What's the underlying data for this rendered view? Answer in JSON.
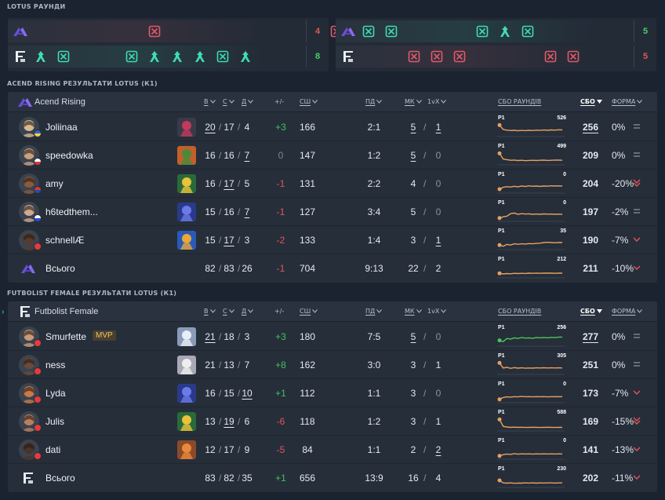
{
  "rounds_section_title": "LOTUS РАУНДИ",
  "rounds": {
    "colors": {
      "win": "#3fdcb0",
      "loss": "#e05a68",
      "score_win": "#45d06b",
      "score_loss": "#e05a5a"
    },
    "left_panel": {
      "rows": [
        {
          "team": "Acend Rising",
          "logo": "acend-logo",
          "score": "4",
          "score_kind": "loss",
          "icons": [
            {
              "slot": 6,
              "type": "elim",
              "kind": "loss"
            },
            {
              "slot": 14,
              "type": "elim",
              "kind": "loss"
            },
            {
              "slot": 15,
              "type": "elim",
              "kind": "loss"
            },
            {
              "slot": 16,
              "type": "elim",
              "kind": "loss"
            }
          ]
        },
        {
          "team": "Futbolist Female",
          "logo": "futbolist-logo",
          "score": "8",
          "score_kind": "win",
          "icons": [
            {
              "slot": 1,
              "type": "defuse",
              "kind": "win"
            },
            {
              "slot": 2,
              "type": "elim",
              "kind": "win"
            },
            {
              "slot": 5,
              "type": "elim",
              "kind": "win"
            },
            {
              "slot": 6,
              "type": "defuse",
              "kind": "win"
            },
            {
              "slot": 7,
              "type": "defuse",
              "kind": "win"
            },
            {
              "slot": 8,
              "type": "defuse",
              "kind": "win"
            },
            {
              "slot": 9,
              "type": "elim",
              "kind": "win"
            },
            {
              "slot": 10,
              "type": "defuse",
              "kind": "win"
            }
          ]
        }
      ]
    },
    "right_panel": {
      "rows": [
        {
          "team": "Acend Rising",
          "logo": "acend-logo",
          "score": "5",
          "score_kind": "win",
          "icons": [
            {
              "slot": 1,
              "type": "elim",
              "kind": "win"
            },
            {
              "slot": 2,
              "type": "elim",
              "kind": "win"
            },
            {
              "slot": 6,
              "type": "elim",
              "kind": "win"
            },
            {
              "slot": 7,
              "type": "defuse",
              "kind": "win"
            },
            {
              "slot": 8,
              "type": "elim",
              "kind": "win"
            }
          ]
        },
        {
          "team": "Futbolist Female",
          "logo": "futbolist-logo",
          "score": "5",
          "score_kind": "loss",
          "icons": [
            {
              "slot": 3,
              "type": "elim",
              "kind": "loss"
            },
            {
              "slot": 4,
              "type": "elim",
              "kind": "loss"
            },
            {
              "slot": 5,
              "type": "elim",
              "kind": "loss"
            },
            {
              "slot": 9,
              "type": "elim",
              "kind": "loss"
            },
            {
              "slot": 10,
              "type": "elim",
              "kind": "loss"
            }
          ]
        }
      ]
    }
  },
  "headers": {
    "k": "В",
    "d": "С",
    "a": "Д",
    "pm": "+/-",
    "acs": "СШ",
    "fkfd": "ПД",
    "mk": "МК",
    "clutch": "1vX",
    "graph": "СБО РАУНДІВ",
    "sbo": "СБО",
    "form": "ФОРМА"
  },
  "teams": [
    {
      "section_title": "ACEND RISING РЕЗУЛЬТАТИ LOTUS (К1)",
      "name": "Acend Rising",
      "logo": "acend-logo",
      "players": [
        {
          "name": "Joliinaa",
          "flag": "flag-se",
          "agent": "agent-dark",
          "k": "20",
          "d": "17",
          "a": "4",
          "k_u": true,
          "d_u": false,
          "a_u": false,
          "pm": "+3",
          "acs": "166",
          "fkfd": "2:1",
          "mk": "5",
          "mk_u": true,
          "cl": "1",
          "cl_u": true,
          "graph_label": "P1",
          "graph_max": "526",
          "sbo": "256",
          "sbo_u": true,
          "form": "0%",
          "form_icon": "equal-icon",
          "spark": [
            0.85,
            0.5,
            0.45,
            0.42,
            0.44,
            0.4,
            0.43,
            0.41,
            0.44,
            0.42,
            0.45,
            0.43,
            0.46,
            0.44,
            0.47,
            0.45,
            0.48,
            0.47
          ],
          "spark_color": "#e8a060"
        },
        {
          "name": "speedowka",
          "flag": "flag-pl",
          "agent": "agent-orange",
          "k": "16",
          "d": "16",
          "a": "7",
          "k_u": false,
          "d_u": false,
          "a_u": true,
          "pm": "0",
          "acs": "147",
          "fkfd": "1:2",
          "mk": "5",
          "mk_u": true,
          "cl": "0",
          "cl_u": false,
          "graph_label": "P1",
          "graph_max": "499",
          "sbo": "209",
          "sbo_u": false,
          "form": "0%",
          "form_icon": "equal-icon",
          "spark": [
            0.85,
            0.4,
            0.35,
            0.3,
            0.32,
            0.28,
            0.3,
            0.27,
            0.29,
            0.3,
            0.28,
            0.3,
            0.31,
            0.29,
            0.3,
            0.32,
            0.31,
            0.3
          ],
          "spark_color": "#e8a060"
        },
        {
          "name": "amy",
          "flag": "flag-nl",
          "agent": "agent-yellow",
          "k": "16",
          "d": "17",
          "a": "5",
          "k_u": false,
          "d_u": true,
          "a_u": false,
          "pm": "-1",
          "acs": "131",
          "fkfd": "2:2",
          "mk": "4",
          "mk_u": false,
          "cl": "0",
          "cl_u": false,
          "graph_label": "P1",
          "graph_max": "0",
          "sbo": "204",
          "sbo_u": false,
          "form": "-20%",
          "form_icon": "double-down-icon",
          "spark": [
            0.25,
            0.4,
            0.45,
            0.42,
            0.48,
            0.44,
            0.5,
            0.46,
            0.52,
            0.48,
            0.5,
            0.47,
            0.5,
            0.49,
            0.52,
            0.5,
            0.51,
            0.5
          ],
          "spark_color": "#e8a060"
        },
        {
          "name": "h6tedthem...",
          "flag": "flag-ru",
          "agent": "agent-blue",
          "k": "15",
          "d": "16",
          "a": "7",
          "k_u": false,
          "d_u": false,
          "a_u": true,
          "pm": "-1",
          "acs": "127",
          "fkfd": "3:4",
          "mk": "5",
          "mk_u": false,
          "cl": "0",
          "cl_u": false,
          "graph_label": "P1",
          "graph_max": "0",
          "sbo": "197",
          "sbo_u": false,
          "form": "-2%",
          "form_icon": "equal-icon",
          "spark": [
            0.2,
            0.3,
            0.35,
            0.55,
            0.6,
            0.5,
            0.55,
            0.52,
            0.54,
            0.5,
            0.52,
            0.5,
            0.53,
            0.51,
            0.52,
            0.5,
            0.51,
            0.5
          ],
          "spark_color": "#e8a060"
        },
        {
          "name": "schnellÆ",
          "flag": "flag-tr",
          "agent": "agent-blue2",
          "k": "15",
          "d": "17",
          "a": "3",
          "k_u": false,
          "d_u": true,
          "a_u": false,
          "pm": "-2",
          "acs": "133",
          "fkfd": "1:4",
          "mk": "3",
          "mk_u": false,
          "cl": "1",
          "cl_u": true,
          "graph_label": "P1",
          "graph_max": "35",
          "sbo": "190",
          "sbo_u": false,
          "form": "-7%",
          "form_icon": "down-icon",
          "spark": [
            0.3,
            0.2,
            0.35,
            0.3,
            0.4,
            0.36,
            0.4,
            0.38,
            0.42,
            0.4,
            0.43,
            0.45,
            0.5,
            0.52,
            0.5,
            0.48,
            0.5,
            0.5
          ],
          "spark_color": "#e8a060"
        }
      ],
      "total": {
        "label": "Всього",
        "k": "82",
        "d": "83",
        "a": "26",
        "pm": "-1",
        "acs": "704",
        "fkfd": "9:13",
        "mk": "22",
        "cl": "2",
        "graph_label": "P1",
        "graph_max": "212",
        "sbo": "211",
        "form": "-10%",
        "form_icon": "down-icon",
        "spark": [
          0.3,
          0.25,
          0.28,
          0.26,
          0.3,
          0.28,
          0.3,
          0.29,
          0.31,
          0.3,
          0.32,
          0.3,
          0.31,
          0.32,
          0.31,
          0.3,
          0.32,
          0.31
        ],
        "spark_color": "#e8a060"
      }
    },
    {
      "section_title": "FUTBOLIST FEMALE РЕЗУЛЬТАТИ LOTUS (К1)",
      "name": "Futbolist Female",
      "logo": "futbolist-logo",
      "players": [
        {
          "name": "Smurfette",
          "mvp": "MVP",
          "flag": "flag-tr",
          "agent": "agent-white",
          "k": "21",
          "d": "18",
          "a": "3",
          "k_u": true,
          "d_u": false,
          "a_u": false,
          "pm": "+3",
          "acs": "180",
          "fkfd": "7:5",
          "mk": "5",
          "mk_u": true,
          "cl": "0",
          "cl_u": false,
          "graph_label": "P1",
          "graph_max": "256",
          "sbo": "277",
          "sbo_u": true,
          "form": "0%",
          "form_icon": "equal-icon",
          "spark": [
            0.4,
            0.3,
            0.55,
            0.5,
            0.6,
            0.55,
            0.62,
            0.58,
            0.6,
            0.57,
            0.62,
            0.6,
            0.63,
            0.6,
            0.64,
            0.62,
            0.65,
            0.66
          ],
          "spark_color": "#4cc55c"
        },
        {
          "name": "ness",
          "flag": "flag-tr",
          "agent": "agent-white2",
          "k": "21",
          "d": "13",
          "a": "7",
          "k_u": false,
          "d_u": false,
          "a_u": false,
          "pm": "+8",
          "acs": "162",
          "fkfd": "3:0",
          "mk": "3",
          "mk_u": false,
          "cl": "1",
          "cl_u": false,
          "graph_label": "P1",
          "graph_max": "305",
          "sbo": "251",
          "sbo_u": false,
          "form": "0%",
          "form_icon": "equal-icon",
          "spark": [
            0.85,
            0.45,
            0.5,
            0.42,
            0.48,
            0.44,
            0.46,
            0.43,
            0.45,
            0.44,
            0.46,
            0.45,
            0.47,
            0.45,
            0.46,
            0.45,
            0.46,
            0.45
          ],
          "spark_color": "#e8a060"
        },
        {
          "name": "Lyda",
          "flag": "flag-tr",
          "agent": "agent-blue",
          "k": "16",
          "d": "15",
          "a": "10",
          "k_u": false,
          "d_u": false,
          "a_u": true,
          "pm": "+1",
          "acs": "112",
          "fkfd": "1:1",
          "mk": "3",
          "mk_u": false,
          "cl": "0",
          "cl_u": false,
          "graph_label": "P1",
          "graph_max": "0",
          "sbo": "173",
          "sbo_u": false,
          "form": "-7%",
          "form_icon": "down-icon",
          "spark": [
            0.2,
            0.35,
            0.4,
            0.38,
            0.42,
            0.4,
            0.43,
            0.41,
            0.42,
            0.4,
            0.42,
            0.41,
            0.42,
            0.4,
            0.41,
            0.42,
            0.41,
            0.42
          ],
          "spark_color": "#e8a060"
        },
        {
          "name": "Julis",
          "flag": "flag-tr",
          "agent": "agent-yellow",
          "k": "13",
          "d": "19",
          "a": "6",
          "k_u": false,
          "d_u": true,
          "a_u": false,
          "pm": "-6",
          "acs": "118",
          "fkfd": "1:2",
          "mk": "3",
          "mk_u": false,
          "cl": "1",
          "cl_u": false,
          "graph_label": "P1",
          "graph_max": "588",
          "sbo": "169",
          "sbo_u": false,
          "form": "-15%",
          "form_icon": "double-down-icon",
          "spark": [
            0.85,
            0.3,
            0.25,
            0.22,
            0.24,
            0.22,
            0.23,
            0.21,
            0.22,
            0.23,
            0.22,
            0.21,
            0.22,
            0.23,
            0.22,
            0.21,
            0.22,
            0.22
          ],
          "spark_color": "#e8a060"
        },
        {
          "name": "dati",
          "flag": "flag-tr",
          "agent": "agent-orange2",
          "k": "12",
          "d": "17",
          "a": "9",
          "k_u": false,
          "d_u": false,
          "a_u": false,
          "pm": "-5",
          "acs": "84",
          "fkfd": "1:1",
          "mk": "2",
          "mk_u": false,
          "cl": "2",
          "cl_u": true,
          "graph_label": "P1",
          "graph_max": "0",
          "sbo": "141",
          "sbo_u": false,
          "form": "-13%",
          "form_icon": "down-icon",
          "spark": [
            0.2,
            0.3,
            0.35,
            0.32,
            0.38,
            0.34,
            0.36,
            0.35,
            0.36,
            0.34,
            0.36,
            0.35,
            0.36,
            0.35,
            0.36,
            0.35,
            0.36,
            0.35
          ],
          "spark_color": "#e8a060"
        }
      ],
      "total": {
        "label": "Всього",
        "k": "83",
        "d": "82",
        "a": "35",
        "pm": "+1",
        "acs": "656",
        "fkfd": "13:9",
        "mk": "16",
        "cl": "4",
        "graph_label": "P1",
        "graph_max": "230",
        "sbo": "202",
        "form": "-11%",
        "form_icon": "down-icon",
        "spark": [
          0.5,
          0.3,
          0.28,
          0.3,
          0.27,
          0.29,
          0.28,
          0.3,
          0.29,
          0.3,
          0.28,
          0.3,
          0.29,
          0.3,
          0.3,
          0.29,
          0.3,
          0.3
        ],
        "spark_color": "#e8a060"
      }
    }
  ]
}
